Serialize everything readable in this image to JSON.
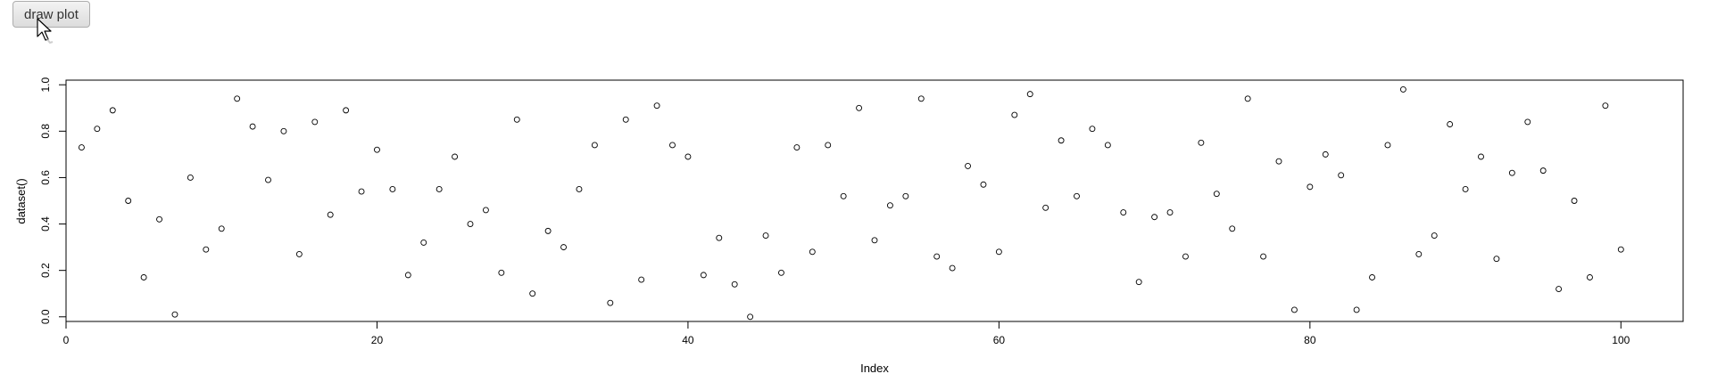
{
  "toolbar": {
    "button_label": "draw plot"
  },
  "chart_data": {
    "type": "scatter",
    "title": "",
    "xlabel": "Index",
    "ylabel": "dataset()",
    "xlim": [
      0,
      104
    ],
    "ylim": [
      -0.02,
      1.02
    ],
    "xticks": [
      0,
      20,
      40,
      60,
      80,
      100
    ],
    "yticks": [
      0.0,
      0.2,
      0.4,
      0.6,
      0.8,
      1.0
    ],
    "xtick_labels": [
      "0",
      "20",
      "40",
      "60",
      "80",
      "100"
    ],
    "ytick_labels": [
      "0.0",
      "0.2",
      "0.4",
      "0.6",
      "0.8",
      "1.0"
    ],
    "marker": "open-circle",
    "grid": false,
    "x": [
      1,
      2,
      3,
      4,
      5,
      6,
      7,
      8,
      9,
      10,
      11,
      12,
      13,
      14,
      15,
      16,
      17,
      18,
      19,
      20,
      21,
      22,
      23,
      24,
      25,
      26,
      27,
      28,
      29,
      30,
      31,
      32,
      33,
      34,
      35,
      36,
      37,
      38,
      39,
      40,
      41,
      42,
      43,
      44,
      45,
      46,
      47,
      48,
      49,
      50,
      51,
      52,
      53,
      54,
      55,
      56,
      57,
      58,
      59,
      60,
      61,
      62,
      63,
      64,
      65,
      66,
      67,
      68,
      69,
      70,
      71,
      72,
      73,
      74,
      75,
      76,
      77,
      78,
      79,
      80,
      81,
      82,
      83,
      84,
      85,
      86,
      87,
      88,
      89,
      90,
      91,
      92,
      93,
      94,
      95,
      96,
      97,
      98,
      99,
      100
    ],
    "y": [
      0.73,
      0.81,
      0.89,
      0.5,
      0.17,
      0.42,
      0.01,
      0.6,
      0.29,
      0.38,
      0.94,
      0.82,
      0.59,
      0.8,
      0.27,
      0.84,
      0.44,
      0.89,
      0.54,
      0.72,
      0.55,
      0.18,
      0.32,
      0.55,
      0.69,
      0.4,
      0.46,
      0.19,
      0.85,
      0.1,
      0.37,
      0.3,
      0.55,
      0.74,
      0.06,
      0.85,
      0.16,
      0.91,
      0.74,
      0.69,
      0.18,
      0.34,
      0.14,
      0.0,
      0.35,
      0.19,
      0.73,
      0.28,
      0.74,
      0.52,
      0.9,
      0.33,
      0.48,
      0.52,
      0.94,
      0.26,
      0.21,
      0.65,
      0.57,
      0.28,
      0.87,
      0.96,
      0.47,
      0.76,
      0.52,
      0.81,
      0.74,
      0.45,
      0.15,
      0.43,
      0.45,
      0.26,
      0.75,
      0.53,
      0.38,
      0.94,
      0.26,
      0.67,
      0.03,
      0.56,
      0.7,
      0.61,
      0.03,
      0.17,
      0.74,
      0.98,
      0.27,
      0.35,
      0.83,
      0.55,
      0.69,
      0.25,
      0.62,
      0.84,
      0.63,
      0.12,
      0.5,
      0.17,
      0.91,
      0.29
    ]
  }
}
